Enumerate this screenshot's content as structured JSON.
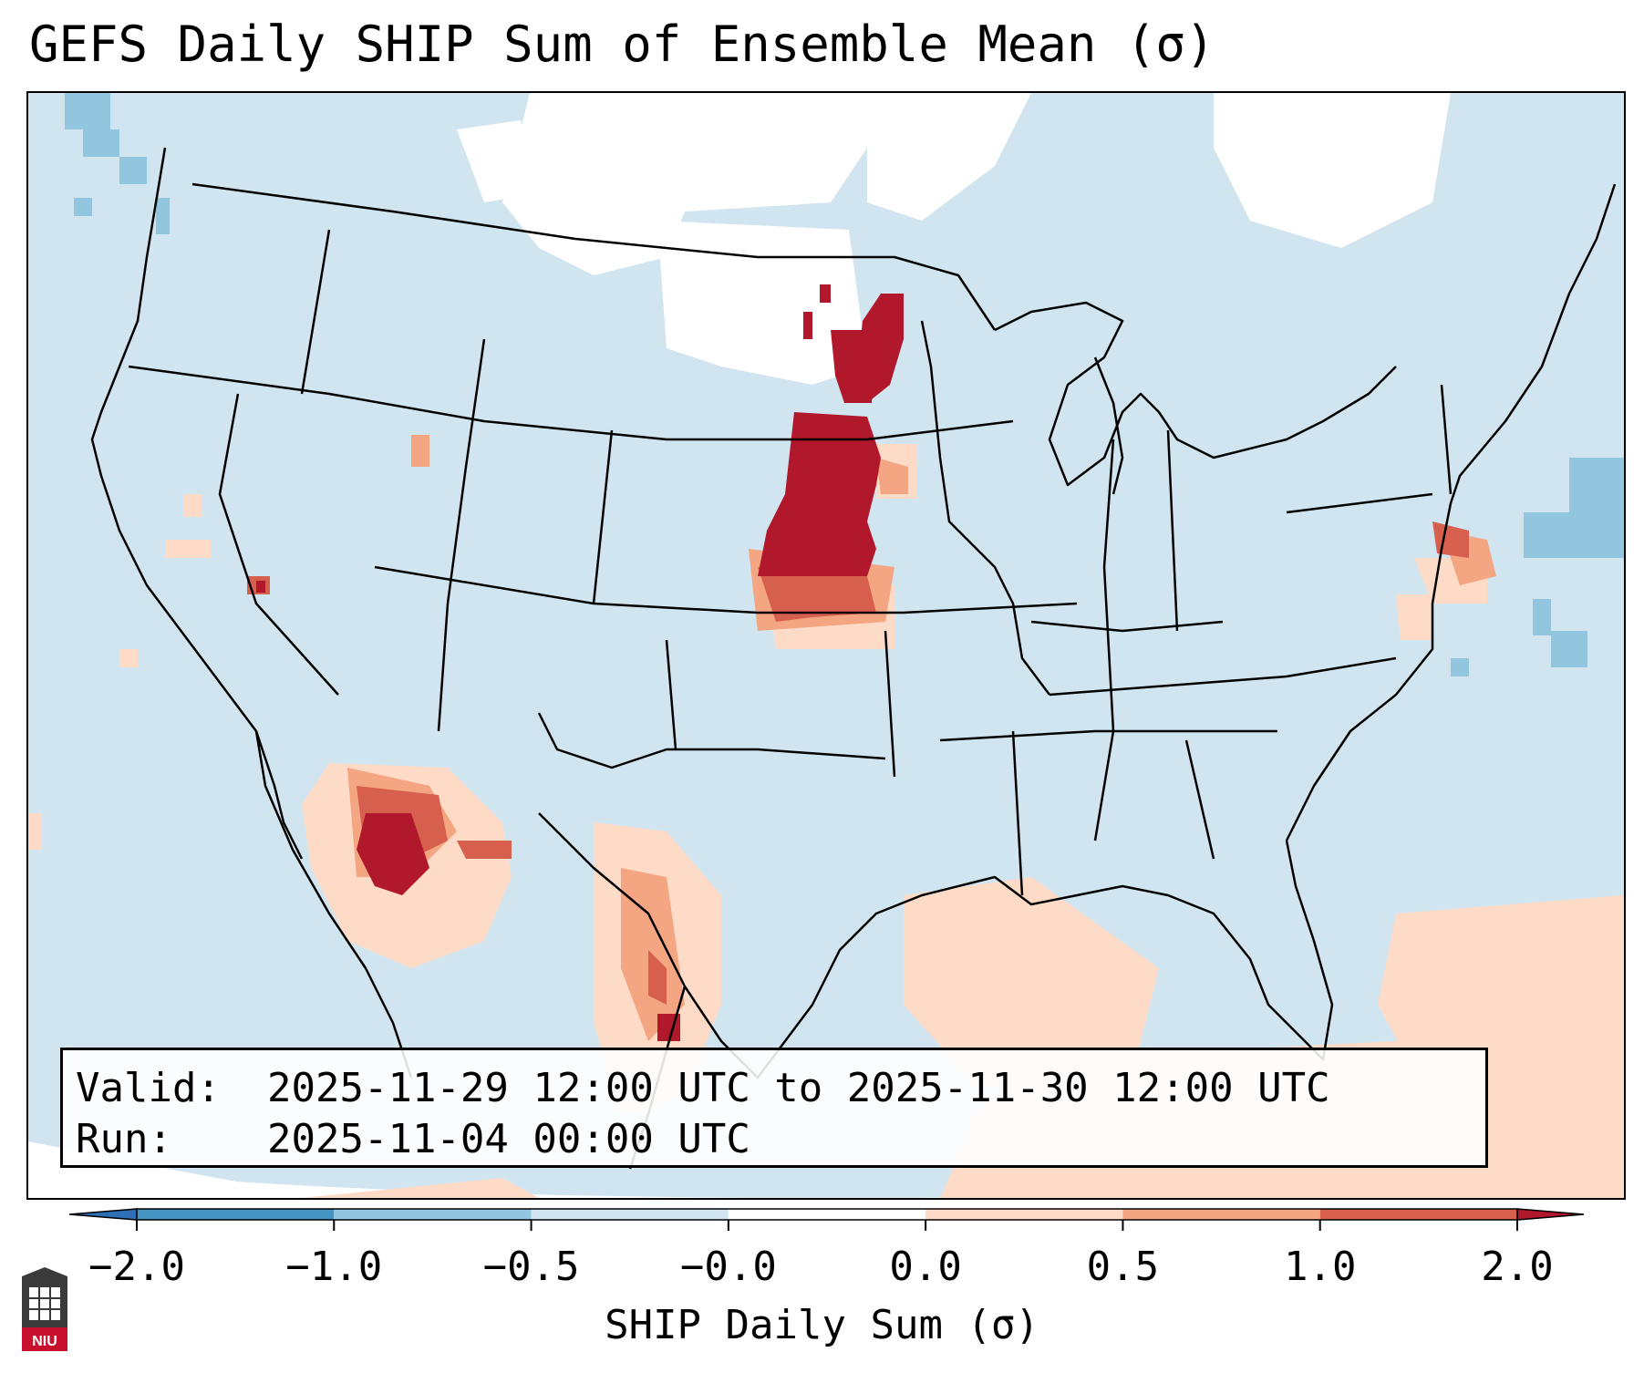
{
  "title": "GEFS Daily SHIP Sum of Ensemble Mean (σ)",
  "info": {
    "valid_label": "Valid:",
    "valid_value": "2025-11-29 12:00 UTC to 2025-11-30 12:00 UTC",
    "run_label": "Run:",
    "run_value": "2025-11-04 00:00 UTC"
  },
  "colorbar": {
    "label": "SHIP Daily Sum (σ)",
    "ticks": [
      "−2.0",
      "−1.0",
      "−0.5",
      "−0.0",
      "0.0",
      "0.5",
      "1.0",
      "2.0"
    ],
    "colors": {
      "extend_low": "#2f6fb5",
      "bin_-2_-1": "#4393c3",
      "bin_-1_-0.5": "#92c5de",
      "bin_-0.5_0": "#d1e5f0",
      "bin_0_0": "#ffffff",
      "bin_0_0.5": "#fddbc7",
      "bin_0.5_1": "#f4a582",
      "bin_1_2": "#d6604d",
      "extend_high": "#b2182b"
    }
  },
  "map": {
    "background_color": "#d1e5f0",
    "outline_color": "#000000",
    "logo_text": "NIU"
  }
}
